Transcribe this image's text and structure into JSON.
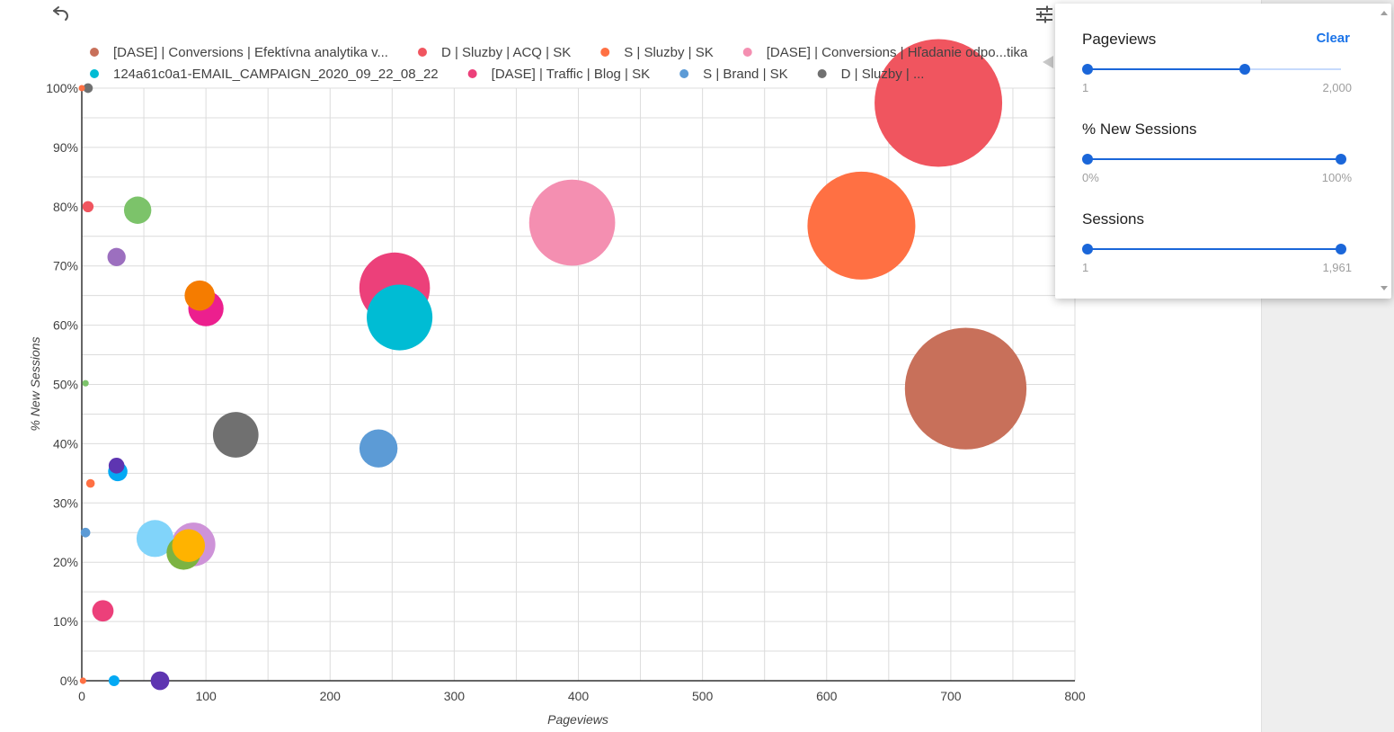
{
  "toolbar": {
    "undo_icon": "undo-icon",
    "filter_icon": "tune-icon"
  },
  "chart_data": {
    "type": "scatter",
    "bubble": true,
    "xlabel": "Pageviews",
    "ylabel": "% New Sessions",
    "xlim": [
      0,
      800
    ],
    "ylim": [
      0,
      100
    ],
    "x_ticks": [
      0,
      100,
      200,
      300,
      400,
      500,
      600,
      700,
      800
    ],
    "y_ticks": [
      0,
      10,
      20,
      30,
      40,
      50,
      60,
      70,
      80,
      90,
      100
    ],
    "x_tick_labels": [
      "0",
      "100",
      "200",
      "300",
      "400",
      "500",
      "600",
      "700",
      "800"
    ],
    "y_tick_labels": [
      "0%",
      "10%",
      "20%",
      "30%",
      "40%",
      "50%",
      "60%",
      "70%",
      "80%",
      "90%",
      "100%"
    ],
    "grid": true,
    "legend_position": "top",
    "legend": [
      {
        "name": "[DASE] | Conversions | Efektívna analytika v...",
        "color": "#c8705a"
      },
      {
        "name": "D | Sluzby | ACQ | SK",
        "color": "#f0555f"
      },
      {
        "name": "S | Sluzby | SK",
        "color": "#ff7043"
      },
      {
        "name": "[DASE] | Conversions | Hľadanie odpo...tika",
        "color": "#f48fb1"
      },
      {
        "name": "124a61c0a1-EMAIL_CAMPAIGN_2020_09_22_08_22",
        "color": "#00bcd4"
      },
      {
        "name": "[DASE] | Traffic | Blog | SK",
        "color": "#ec407a"
      },
      {
        "name": "S | Brand | SK",
        "color": "#5c9bd6"
      },
      {
        "name": "D | Sluzby | ...",
        "color": "#707070"
      }
    ],
    "points": [
      {
        "x": 690,
        "y": 97.5,
        "size": 1961,
        "color": "#f0555f"
      },
      {
        "x": 712,
        "y": 49.3,
        "size": 1780,
        "color": "#c8705a"
      },
      {
        "x": 628,
        "y": 76.8,
        "size": 1400,
        "color": "#ff7043"
      },
      {
        "x": 395,
        "y": 77.3,
        "size": 890,
        "color": "#f48fb1"
      },
      {
        "x": 256,
        "y": 61.3,
        "size": 520,
        "color": "#00bcd4"
      },
      {
        "x": 252,
        "y": 66.3,
        "size": 600,
        "color": "#ec407a"
      },
      {
        "x": 124,
        "y": 41.5,
        "size": 250,
        "color": "#707070"
      },
      {
        "x": 239,
        "y": 39.2,
        "size": 175,
        "color": "#5c9bd6"
      },
      {
        "x": 45,
        "y": 79.4,
        "size": 90,
        "color": "#7cc36a"
      },
      {
        "x": 28,
        "y": 71.5,
        "size": 40,
        "color": "#9c6fbf"
      },
      {
        "x": 95,
        "y": 65.0,
        "size": 110,
        "color": "#f57c00"
      },
      {
        "x": 100,
        "y": 62.8,
        "size": 150,
        "color": "#ec1f8e"
      },
      {
        "x": 5,
        "y": 80.0,
        "size": 15,
        "color": "#f0555f"
      },
      {
        "x": 5,
        "y": 100,
        "size": 11,
        "color": "#707070"
      },
      {
        "x": 0,
        "y": 100,
        "size": 4,
        "color": "#ff7043"
      },
      {
        "x": 3,
        "y": 50.2,
        "size": 5,
        "color": "#7cc36a"
      },
      {
        "x": 28,
        "y": 36.3,
        "size": 30,
        "color": "#5e35b1"
      },
      {
        "x": 29,
        "y": 35.3,
        "size": 45,
        "color": "#03a9f4"
      },
      {
        "x": 7,
        "y": 33.3,
        "size": 9,
        "color": "#ff7043"
      },
      {
        "x": 3,
        "y": 25.0,
        "size": 11,
        "color": "#5c9bd6"
      },
      {
        "x": 59,
        "y": 24.0,
        "size": 165,
        "color": "#81d4fa"
      },
      {
        "x": 90,
        "y": 23.0,
        "size": 230,
        "color": "#ce93d8"
      },
      {
        "x": 86,
        "y": 22.8,
        "size": 130,
        "color": "#ffb300"
      },
      {
        "x": 82,
        "y": 21.6,
        "size": 140,
        "color": "#7cb342"
      },
      {
        "x": 17,
        "y": 11.8,
        "size": 55,
        "color": "#ec407a"
      },
      {
        "x": 1,
        "y": 0,
        "size": 5,
        "color": "#ff7043"
      },
      {
        "x": 26,
        "y": 0,
        "size": 14,
        "color": "#03a9f4"
      },
      {
        "x": 63,
        "y": 0,
        "size": 42,
        "color": "#5e35b1"
      }
    ]
  },
  "filter_panel": {
    "clear_label": "Clear",
    "filters": [
      {
        "title": "Pageviews",
        "min_label": "1",
        "max_label": "2,000",
        "low": 0.0,
        "high": 0.62
      },
      {
        "title": "% New Sessions",
        "min_label": "0%",
        "max_label": "100%",
        "low": 0.0,
        "high": 1.0
      },
      {
        "title": "Sessions",
        "min_label": "1",
        "max_label": "1,961",
        "low": 0.0,
        "high": 1.0
      }
    ]
  }
}
